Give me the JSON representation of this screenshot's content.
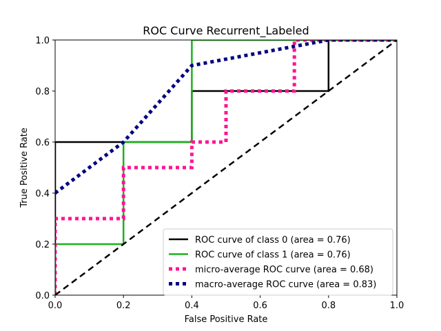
{
  "chart_data": {
    "type": "line",
    "title": "ROC Curve Recurrent_Labeled",
    "xlabel": "False Positive Rate",
    "ylabel": "True Positive Rate",
    "xlim": [
      0.0,
      1.0
    ],
    "ylim": [
      0.0,
      1.0
    ],
    "xticks": [
      "0.0",
      "0.2",
      "0.4",
      "0.6",
      "0.8",
      "1.0"
    ],
    "yticks": [
      "0.0",
      "0.2",
      "0.4",
      "0.6",
      "0.8",
      "1.0"
    ],
    "grid": false,
    "legend_position": "lower-right",
    "series": [
      {
        "name": "ROC curve of class 0 (area = 0.76)",
        "color": "#000000",
        "style": "solid",
        "x": [
          0.0,
          0.0,
          0.2,
          0.4,
          0.4,
          0.8,
          0.8,
          1.0
        ],
        "y": [
          0.0,
          0.6,
          0.6,
          0.6,
          0.8,
          0.8,
          1.0,
          1.0
        ]
      },
      {
        "name": "ROC curve of class 1 (area = 0.76)",
        "color": "#1ab31a",
        "style": "solid",
        "x": [
          0.0,
          0.0,
          0.2,
          0.2,
          0.4,
          0.4,
          1.0
        ],
        "y": [
          0.0,
          0.2,
          0.2,
          0.6,
          0.6,
          1.0,
          1.0
        ]
      },
      {
        "name": "micro-average ROC curve (area = 0.68)",
        "color": "#ff1493",
        "style": "dotted",
        "x": [
          0.0,
          0.0,
          0.2,
          0.2,
          0.4,
          0.4,
          0.5,
          0.5,
          0.7,
          0.7,
          1.0
        ],
        "y": [
          0.0,
          0.3,
          0.3,
          0.5,
          0.5,
          0.6,
          0.6,
          0.8,
          0.8,
          1.0,
          1.0
        ]
      },
      {
        "name": "macro-average ROC curve (area = 0.83)",
        "color": "#000080",
        "style": "dotted",
        "x": [
          0.0,
          0.2,
          0.4,
          0.8,
          1.0
        ],
        "y": [
          0.4,
          0.6,
          0.9,
          1.0,
          1.0
        ]
      },
      {
        "name": "",
        "color": "#000000",
        "style": "dashed",
        "x": [
          0.0,
          1.0
        ],
        "y": [
          0.0,
          1.0
        ]
      }
    ]
  }
}
